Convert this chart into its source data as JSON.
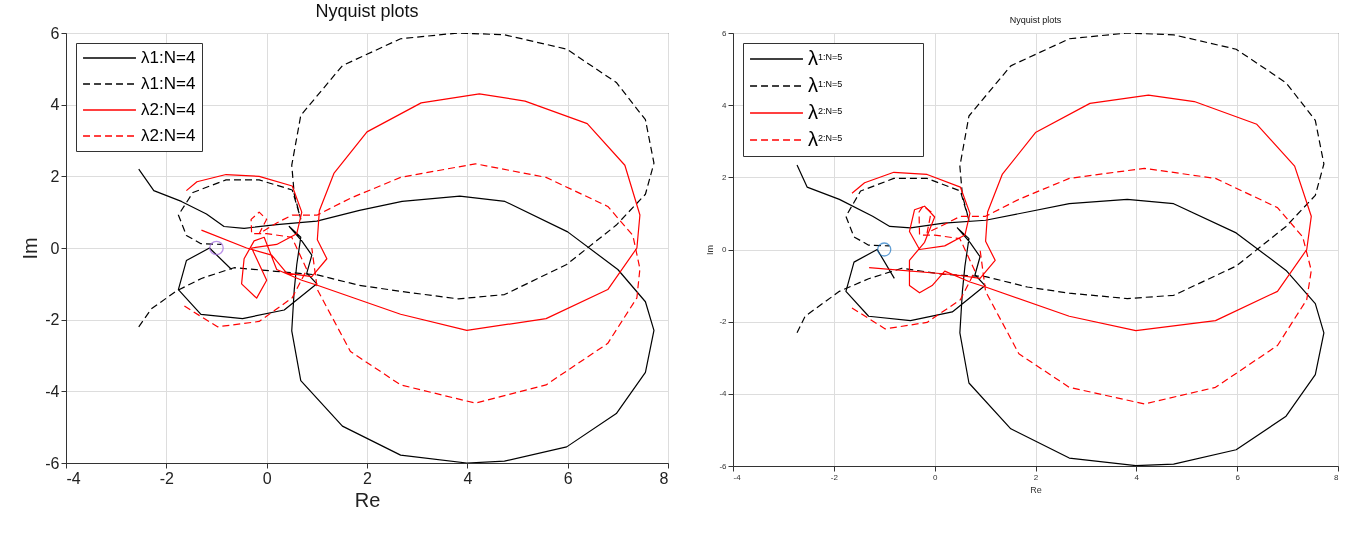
{
  "chart_data": [
    {
      "type": "line",
      "title": "Nyquist plots",
      "xlabel": "Re",
      "ylabel": "Im",
      "xlim": [
        -4,
        8
      ],
      "ylim": [
        -6,
        6
      ],
      "xticks": [
        -4,
        -2,
        0,
        2,
        4,
        6,
        8
      ],
      "yticks": [
        -6,
        -4,
        -2,
        0,
        2,
        4,
        6
      ],
      "grid": true,
      "legend": "top left",
      "series": [
        {
          "name": "λ1:N=4",
          "color": "#000000",
          "line_style": "solid",
          "x": [
            -2.55,
            -2.25,
            -1.7,
            -1.2,
            -0.85,
            -0.45,
            0.2,
            1.0,
            1.85,
            2.7,
            3.85,
            4.75,
            6.0,
            7.0,
            7.55,
            7.72,
            7.55,
            6.97,
            5.98,
            4.74,
            3.99,
            2.67,
            1.51,
            0.68,
            0.5,
            0.55,
            0.6,
            0.68,
            0.45,
            0.7,
            0.9,
            0.8,
            1.0,
            0.35,
            -0.48,
            -1.31,
            -1.76,
            -1.6,
            -1.14,
            -0.7
          ],
          "values": [
            2.2,
            1.6,
            1.3,
            0.95,
            0.6,
            0.55,
            0.65,
            0.75,
            1.05,
            1.3,
            1.45,
            1.3,
            0.45,
            -0.6,
            -1.5,
            -2.3,
            -3.47,
            -4.62,
            -5.55,
            -5.95,
            -6.0,
            -5.78,
            -4.97,
            -3.7,
            -2.31,
            -1.16,
            -0.46,
            0.3,
            0.6,
            0.2,
            -0.2,
            -0.7,
            -1.0,
            -1.73,
            -1.97,
            -1.85,
            -1.16,
            -0.35,
            0.0,
            -0.6
          ]
        },
        {
          "name": "λ1:N=4",
          "color": "#000000",
          "line_style": "dashed",
          "x": [
            -2.55,
            -2.3,
            -1.8,
            -1.3,
            -0.65,
            0.18,
            1.01,
            1.84,
            2.67,
            3.82,
            4.74,
            5.98,
            6.97,
            7.55,
            7.72,
            7.55,
            6.97,
            5.98,
            4.74,
            3.82,
            2.67,
            1.51,
            0.68,
            0.5,
            0.55,
            0.68,
            0.51,
            -0.15,
            -0.81,
            -1.47,
            -1.76,
            -1.6,
            -1.31,
            -0.9
          ],
          "values": [
            -2.2,
            -1.7,
            -1.2,
            -0.85,
            -0.55,
            -0.65,
            -0.75,
            -1.04,
            -1.21,
            -1.42,
            -1.3,
            -0.46,
            0.64,
            1.5,
            2.37,
            3.58,
            4.62,
            5.55,
            5.95,
            6.0,
            5.84,
            5.09,
            3.7,
            2.31,
            1.5,
            0.81,
            1.62,
            1.9,
            1.9,
            1.55,
            0.92,
            0.35,
            0.12,
            0.1
          ]
        },
        {
          "name": "λ2:N=4",
          "color": "#ff0000",
          "line_style": "solid",
          "x": [
            -1.6,
            -1.39,
            -0.81,
            -0.15,
            0.51,
            0.7,
            0.6,
            0.2,
            -0.3,
            -0.2,
            0.0,
            -0.2,
            -0.5,
            -0.45,
            -0.25,
            -0.05,
            0.2,
            0.7,
            1.01,
            2.67,
            3.99,
            5.57,
            6.8,
            7.38,
            7.44,
            7.14,
            6.39,
            5.15,
            4.24,
            3.08,
            2.0,
            1.34,
            1.05,
            1.01,
            1.2,
            0.9,
            0.4,
            0.1,
            -0.4,
            -1.3
          ],
          "values": [
            1.6,
            1.85,
            2.05,
            2.0,
            1.73,
            1.0,
            0.4,
            0.1,
            0.0,
            -0.3,
            -0.9,
            -1.4,
            -1.0,
            -0.3,
            0.2,
            0.3,
            -0.6,
            -0.9,
            -1.04,
            -1.85,
            -2.3,
            -1.97,
            -1.16,
            0.0,
            0.92,
            2.31,
            3.47,
            4.1,
            4.3,
            4.05,
            3.24,
            2.08,
            1.04,
            0.23,
            -0.3,
            -0.8,
            -0.7,
            -0.2,
            0.0,
            0.5
          ]
        },
        {
          "name": "λ2:N=4",
          "color": "#ff0000",
          "line_style": "dashed",
          "x": [
            -1.64,
            -0.98,
            -0.15,
            0.51,
            0.8,
            0.5,
            0.0,
            -0.3,
            -0.31,
            -0.15,
            0.0,
            -0.15,
            0.2,
            0.51,
            1.01,
            1.67,
            2.67,
            4.16,
            5.57,
            6.8,
            7.3,
            7.44,
            7.38,
            6.8,
            5.57,
            4.16,
            2.67,
            1.67,
            1.01,
            0.9
          ],
          "values": [
            -1.62,
            -2.2,
            -2.05,
            -1.39,
            -0.6,
            0.3,
            0.4,
            0.4,
            0.8,
            1.0,
            0.8,
            0.4,
            0.7,
            0.92,
            0.92,
            1.39,
            1.97,
            2.35,
            1.97,
            1.16,
            0.35,
            -0.58,
            -1.39,
            -2.66,
            -3.82,
            -4.33,
            -3.82,
            -2.89,
            -1.16,
            0.0
          ]
        },
        {
          "type": "scatter",
          "marker": "circle",
          "color": "#a066e0",
          "x": [
            -1
          ],
          "values": [
            0
          ]
        }
      ]
    },
    {
      "type": "line",
      "title": "Nyquist plots",
      "xlabel": "Re",
      "ylabel": "Im",
      "xlim": [
        -4,
        8
      ],
      "ylim": [
        -6,
        6
      ],
      "xticks": [
        -4,
        -2,
        0,
        2,
        4,
        6,
        8
      ],
      "yticks": [
        -6,
        -4,
        -2,
        0,
        2,
        4,
        6
      ],
      "grid": true,
      "legend": "top left",
      "series": [
        {
          "name": "λ$^{1:N=5}$",
          "color": "#000000",
          "line_style": "solid",
          "x": [
            -2.73,
            -2.53,
            -1.89,
            -1.23,
            -0.89,
            -0.48,
            0.18,
            1.01,
            1.84,
            2.67,
            3.82,
            4.74,
            5.98,
            6.97,
            7.55,
            7.72,
            7.55,
            6.97,
            5.98,
            4.74,
            3.99,
            2.67,
            1.51,
            0.68,
            0.5,
            0.55,
            0.6,
            0.68,
            0.45,
            0.7,
            0.9,
            0.8,
            1.0,
            0.35,
            -0.48,
            -1.31,
            -1.76,
            -1.6,
            -1.14,
            -0.8
          ],
          "values": [
            2.34,
            1.73,
            1.39,
            0.92,
            0.64,
            0.6,
            0.73,
            0.81,
            1.04,
            1.27,
            1.39,
            1.27,
            0.46,
            -0.58,
            -1.5,
            -2.31,
            -3.47,
            -4.62,
            -5.55,
            -5.95,
            -5.99,
            -5.78,
            -4.97,
            -3.7,
            -2.31,
            -1.16,
            -0.46,
            0.3,
            0.6,
            0.2,
            -0.2,
            -0.7,
            -1.0,
            -1.73,
            -1.97,
            -1.85,
            -1.16,
            -0.35,
            0.0,
            -0.8
          ]
        },
        {
          "name": "λ$^{1:N=5}$",
          "color": "#000000",
          "line_style": "dashed",
          "x": [
            -2.73,
            -2.57,
            -1.89,
            -1.31,
            -0.65,
            0.18,
            1.01,
            1.84,
            2.67,
            3.82,
            4.74,
            5.98,
            6.97,
            7.55,
            7.72,
            7.55,
            6.97,
            5.98,
            4.74,
            3.82,
            2.67,
            1.51,
            0.68,
            0.5,
            0.55,
            0.68,
            0.51,
            -0.15,
            -0.81,
            -1.47,
            -1.76,
            -1.6,
            -1.31,
            -0.9
          ],
          "values": [
            -2.31,
            -1.85,
            -1.16,
            -0.81,
            -0.52,
            -0.69,
            -0.75,
            -1.04,
            -1.21,
            -1.36,
            -1.27,
            -0.46,
            0.64,
            1.5,
            2.37,
            3.58,
            4.62,
            5.55,
            5.95,
            6.0,
            5.84,
            5.09,
            3.7,
            2.31,
            1.5,
            0.81,
            1.62,
            1.97,
            1.97,
            1.62,
            0.92,
            0.35,
            0.12,
            0.1
          ]
        },
        {
          "name": "λ$^{2:N=5}$",
          "color": "#ff0000",
          "line_style": "solid",
          "x": [
            -1.64,
            -1.39,
            -0.81,
            -0.15,
            0.51,
            0.7,
            0.6,
            0.2,
            -0.3,
            -0.5,
            -0.4,
            -0.2,
            0.0,
            -0.2,
            -0.5,
            -0.5,
            -0.3,
            -0.05,
            0.2,
            0.7,
            1.01,
            2.67,
            3.99,
            5.57,
            6.8,
            7.38,
            7.47,
            7.14,
            6.39,
            5.15,
            4.24,
            3.08,
            2.0,
            1.34,
            1.05,
            1.01,
            1.2,
            0.9,
            0.4,
            -1.3
          ],
          "values": [
            1.56,
            1.85,
            2.14,
            2.08,
            1.73,
            1.0,
            0.4,
            0.1,
            0.0,
            0.5,
            1.1,
            1.2,
            0.9,
            0.2,
            -0.3,
            -1.0,
            -1.2,
            -1.0,
            -0.6,
            -0.9,
            -1.04,
            -1.85,
            -2.25,
            -1.97,
            -1.16,
            0.0,
            0.92,
            2.31,
            3.47,
            4.1,
            4.28,
            4.05,
            3.24,
            2.08,
            1.04,
            0.23,
            -0.3,
            -0.8,
            -0.7,
            -0.5
          ]
        },
        {
          "name": "λ$^{2:N=5}$",
          "color": "#ff0000",
          "line_style": "dashed",
          "x": [
            -1.64,
            -0.98,
            -0.15,
            0.51,
            0.8,
            0.5,
            0.0,
            -0.3,
            -0.31,
            -0.23,
            -0.07,
            -0.15,
            0.2,
            0.51,
            1.01,
            1.67,
            2.67,
            4.16,
            5.57,
            6.8,
            7.3,
            7.47,
            7.38,
            6.8,
            5.57,
            4.16,
            2.67,
            1.67,
            1.01,
            0.9
          ],
          "values": [
            -1.62,
            -2.2,
            -2.02,
            -1.39,
            -0.6,
            0.3,
            0.4,
            0.4,
            1.04,
            1.21,
            1.04,
            0.46,
            0.7,
            0.92,
            0.92,
            1.39,
            1.97,
            2.25,
            1.97,
            1.16,
            0.35,
            -0.58,
            -1.39,
            -2.66,
            -3.82,
            -4.28,
            -3.82,
            -2.89,
            -1.16,
            0.0
          ]
        },
        {
          "type": "scatter",
          "marker": "circle",
          "color": "#1f77c4",
          "x": [
            -1
          ],
          "values": [
            0
          ]
        }
      ]
    }
  ]
}
